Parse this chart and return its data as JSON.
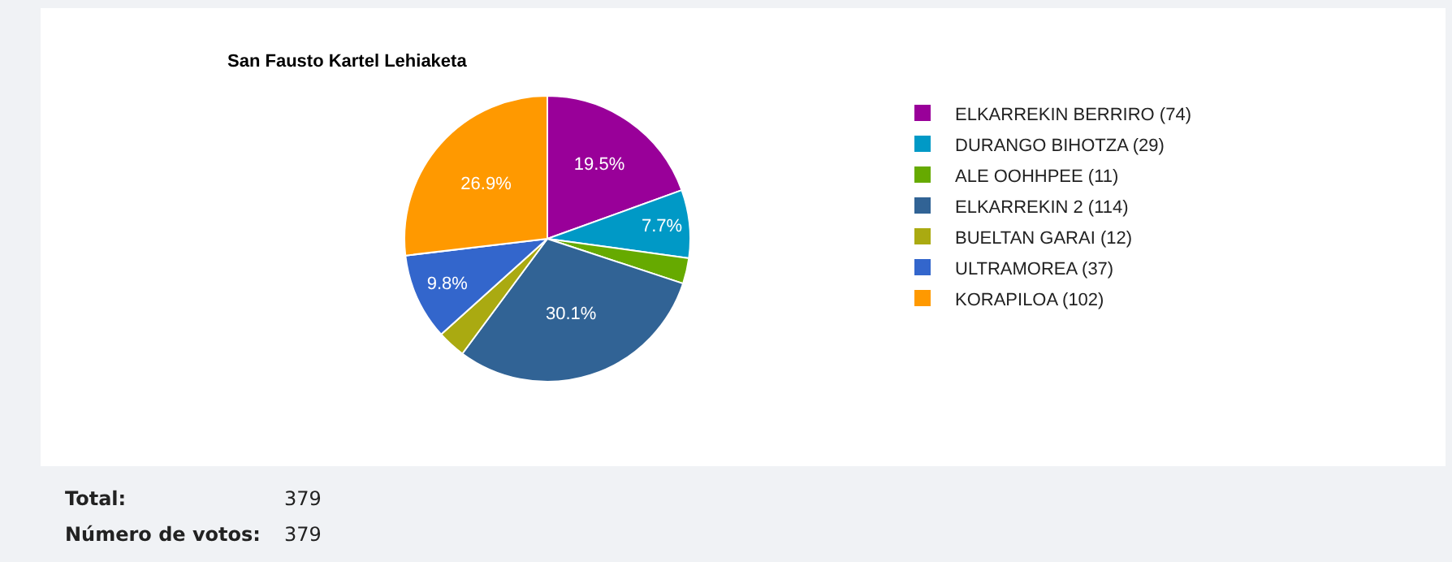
{
  "chart_data": {
    "type": "pie",
    "title": "San Fausto Kartel Lehiaketa",
    "categories": [
      "ELKARREKIN BERRIRO (74)",
      "DURANGO BIHOTZA (29)",
      "ALE OOHHPEE (11)",
      "ELKARREKIN 2 (114)",
      "BUELTAN GARAI (12)",
      "ULTRAMOREA (37)",
      "KORAPILOA (102)"
    ],
    "values": [
      19.5,
      7.7,
      2.9,
      30.1,
      3.2,
      9.8,
      26.9
    ],
    "colors": [
      "#990099",
      "#0099c6",
      "#66aa00",
      "#316395",
      "#aaaa11",
      "#3366cc",
      "#ff9900"
    ],
    "value_labels": [
      "19.5%",
      "7.7%",
      null,
      "30.1%",
      null,
      "9.8%",
      "26.9%"
    ],
    "legend": "right",
    "annotations": [
      "Total:",
      "379",
      "Número de votos:",
      "379"
    ]
  }
}
